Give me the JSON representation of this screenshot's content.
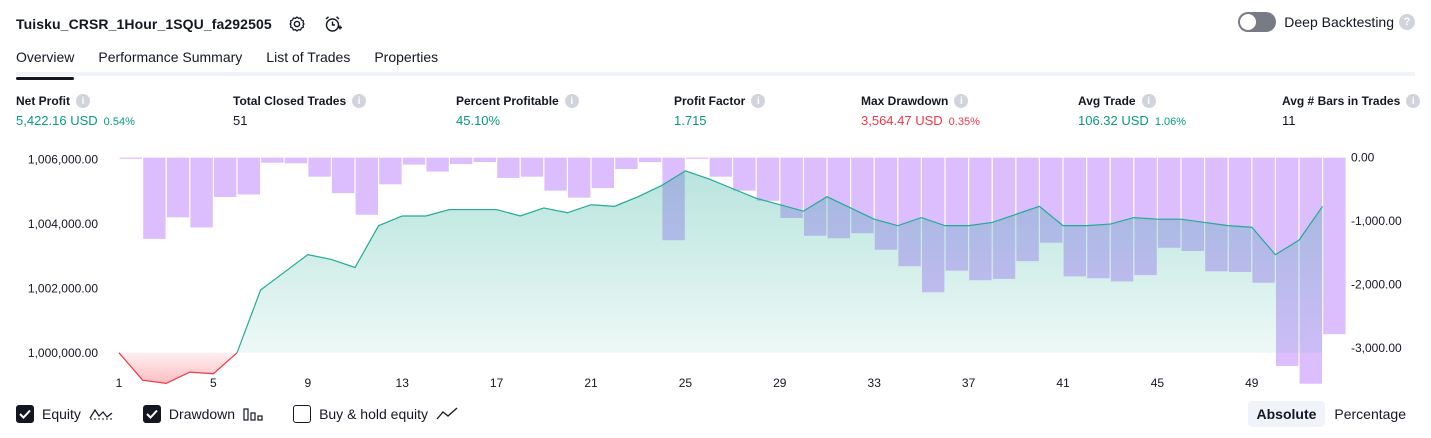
{
  "header": {
    "title": "Tuisku_CRSR_1Hour_1SQU_fa292505",
    "settings_icon": "gear-icon",
    "alert_icon": "alarm-add-icon"
  },
  "deep_backtesting": {
    "label": "Deep Backtesting",
    "enabled": false,
    "help": "?"
  },
  "tabs": [
    {
      "label": "Overview",
      "active": true
    },
    {
      "label": "Performance Summary",
      "active": false
    },
    {
      "label": "List of Trades",
      "active": false
    },
    {
      "label": "Properties",
      "active": false
    }
  ],
  "stats": [
    {
      "label": "Net Profit",
      "value": "5,422.16 USD",
      "pct": "0.54%",
      "color": "green"
    },
    {
      "label": "Total Closed Trades",
      "value": "51",
      "pct": "",
      "color": "dark"
    },
    {
      "label": "Percent Profitable",
      "value": "45.10%",
      "pct": "",
      "color": "green"
    },
    {
      "label": "Profit Factor",
      "value": "1.715",
      "pct": "",
      "color": "green"
    },
    {
      "label": "Max Drawdown",
      "value": "3,564.47 USD",
      "pct": "0.35%",
      "color": "red"
    },
    {
      "label": "Avg Trade",
      "value": "106.32 USD",
      "pct": "1.06%",
      "color": "green"
    },
    {
      "label": "Avg # Bars in Trades",
      "value": "11",
      "pct": "",
      "color": "dark"
    }
  ],
  "info_icon": "i",
  "chart_data": {
    "type": "area",
    "colors": {
      "equity_profit": "#22ab94",
      "equity_loss": "#f23645",
      "drawdown": "#d6b3ff"
    },
    "x": [
      1,
      2,
      3,
      4,
      5,
      6,
      7,
      8,
      9,
      10,
      11,
      12,
      13,
      14,
      15,
      16,
      17,
      18,
      19,
      20,
      21,
      22,
      23,
      24,
      25,
      26,
      27,
      28,
      29,
      30,
      31,
      32,
      33,
      34,
      35,
      36,
      37,
      38,
      39,
      40,
      41,
      42,
      43,
      44,
      45,
      46,
      47,
      48,
      49,
      50,
      51,
      52
    ],
    "x_ticks": [
      "1",
      "5",
      "9",
      "13",
      "17",
      "21",
      "25",
      "29",
      "33",
      "37",
      "41",
      "45",
      "49"
    ],
    "left_axis": {
      "ticks": [
        "1,006,000.00",
        "1,004,000.00",
        "1,002,000.00",
        "1,000,000.00"
      ],
      "tick_values": [
        1006000,
        1004000,
        1002000,
        1000000
      ],
      "range": [
        999000,
        1006300
      ]
    },
    "right_axis": {
      "ticks": [
        "0.00",
        "-1,000.00",
        "-2,000.00",
        "-3,000.00"
      ],
      "tick_values": [
        0,
        -1000,
        -2000,
        -3000
      ],
      "range": [
        -3580,
        120
      ]
    },
    "series": [
      {
        "name": "Equity",
        "values": [
          1000000,
          999150,
          999050,
          999400,
          999350,
          1000000,
          1001950,
          1002500,
          1003050,
          1002900,
          1002650,
          1003950,
          1004250,
          1004250,
          1004450,
          1004450,
          1004450,
          1004250,
          1004500,
          1004350,
          1004600,
          1004550,
          1004850,
          1005200,
          1005650,
          1005400,
          1005100,
          1004800,
          1004600,
          1004400,
          1004850,
          1004500,
          1004150,
          1003950,
          1004200,
          1003950,
          1003950,
          1004050,
          1004300,
          1004550,
          1003950,
          1003950,
          1004000,
          1004200,
          1004150,
          1004150,
          1004050,
          1003950,
          1003900,
          1003050,
          1003500,
          1004550
        ]
      },
      {
        "name": "Drawdown",
        "values": [
          0,
          -1280,
          -940,
          -1100,
          -620,
          -580,
          -80,
          -90,
          -300,
          -560,
          -900,
          -420,
          -110,
          -220,
          -100,
          -70,
          -320,
          -300,
          -520,
          -630,
          -480,
          -180,
          -70,
          -1300,
          0,
          -300,
          -520,
          -680,
          -950,
          -1230,
          -1270,
          -1190,
          -1450,
          -1710,
          -2120,
          -1780,
          -1930,
          -1910,
          -1630,
          -1340,
          -1870,
          -1900,
          -1950,
          -1850,
          -1420,
          -1470,
          -1790,
          -1800,
          -1970,
          -3280,
          -3560,
          -2780
        ]
      }
    ]
  },
  "legend": [
    {
      "label": "Equity",
      "checked": true,
      "icon": "equity-line-icon"
    },
    {
      "label": "Drawdown",
      "checked": true,
      "icon": "drawdown-bars-icon"
    },
    {
      "label": "Buy & hold equity",
      "checked": false,
      "icon": "buy-hold-line-icon"
    }
  ],
  "modes": [
    {
      "label": "Absolute",
      "active": true
    },
    {
      "label": "Percentage",
      "active": false
    }
  ]
}
